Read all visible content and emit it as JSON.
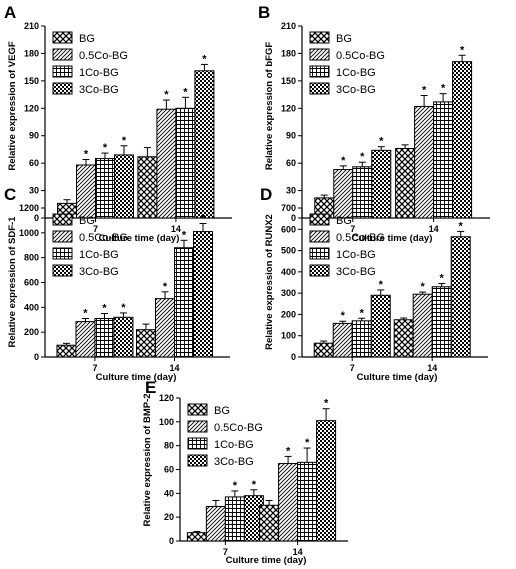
{
  "panels": [
    {
      "letter": "A",
      "chart_data": {
        "type": "bar",
        "categories": [
          "7",
          "14"
        ],
        "series": [
          {
            "name": "BG",
            "pattern": "diamond",
            "values": [
              16,
              67
            ],
            "errors": [
              4,
              10
            ],
            "sig": [
              false,
              false
            ]
          },
          {
            "name": "0.5Co-BG",
            "pattern": "diag",
            "values": [
              58,
              119
            ],
            "errors": [
              6,
              10
            ],
            "sig": [
              true,
              true
            ]
          },
          {
            "name": "1Co-BG",
            "pattern": "grid",
            "values": [
              65,
              120
            ],
            "errors": [
              6,
              12
            ],
            "sig": [
              true,
              true
            ]
          },
          {
            "name": "3Co-BG",
            "pattern": "check",
            "values": [
              69,
              161
            ],
            "errors": [
              10,
              7
            ],
            "sig": [
              true,
              true
            ]
          }
        ],
        "xlabel": "Culture time (day)",
        "ylabel": "Relative expression of VEGF",
        "ylim": [
          0,
          210
        ],
        "yticks": [
          0,
          30,
          60,
          90,
          120,
          150,
          180,
          210
        ],
        "legend": "top-left",
        "significance_mark": "*"
      }
    },
    {
      "letter": "B",
      "chart_data": {
        "type": "bar",
        "categories": [
          "7",
          "14"
        ],
        "series": [
          {
            "name": "BG",
            "pattern": "diamond",
            "values": [
              22,
              76
            ],
            "errors": [
              3,
              4
            ],
            "sig": [
              false,
              false
            ]
          },
          {
            "name": "0.5Co-BG",
            "pattern": "diag",
            "values": [
              53,
              122
            ],
            "errors": [
              4,
              12
            ],
            "sig": [
              true,
              true
            ]
          },
          {
            "name": "1Co-BG",
            "pattern": "grid",
            "values": [
              56,
              127
            ],
            "errors": [
              5,
              9
            ],
            "sig": [
              true,
              true
            ]
          },
          {
            "name": "3Co-BG",
            "pattern": "check",
            "values": [
              74,
              171
            ],
            "errors": [
              4,
              7
            ],
            "sig": [
              true,
              true
            ]
          }
        ],
        "xlabel": "Culture time (day)",
        "ylabel": "Relative expression of bFGF",
        "ylim": [
          0,
          210
        ],
        "yticks": [
          0,
          30,
          60,
          90,
          120,
          150,
          180,
          210
        ],
        "legend": "top-left",
        "significance_mark": "*"
      }
    },
    {
      "letter": "C",
      "chart_data": {
        "type": "bar",
        "categories": [
          "7",
          "14"
        ],
        "series": [
          {
            "name": "BG",
            "pattern": "diamond",
            "values": [
              95,
              220
            ],
            "errors": [
              15,
              45
            ],
            "sig": [
              false,
              false
            ]
          },
          {
            "name": "0.5Co-BG",
            "pattern": "diag",
            "values": [
              285,
              470
            ],
            "errors": [
              25,
              55
            ],
            "sig": [
              true,
              true
            ]
          },
          {
            "name": "1Co-BG",
            "pattern": "grid",
            "values": [
              310,
              880
            ],
            "errors": [
              40,
              60
            ],
            "sig": [
              true,
              true
            ]
          },
          {
            "name": "3Co-BG",
            "pattern": "check",
            "values": [
              320,
              1010
            ],
            "errors": [
              35,
              65
            ],
            "sig": [
              true,
              true
            ]
          }
        ],
        "xlabel": "Culture time (day)",
        "ylabel": "Relative expression of SDF-1",
        "ylim": [
          0,
          1200
        ],
        "yticks": [
          0,
          200,
          400,
          600,
          800,
          1000,
          1200
        ],
        "legend": "top-left",
        "significance_mark": "*"
      }
    },
    {
      "letter": "D",
      "chart_data": {
        "type": "bar",
        "categories": [
          "7",
          "14"
        ],
        "series": [
          {
            "name": "BG",
            "pattern": "diamond",
            "values": [
              65,
              175
            ],
            "errors": [
              10,
              8
            ],
            "sig": [
              false,
              false
            ]
          },
          {
            "name": "0.5Co-BG",
            "pattern": "diag",
            "values": [
              158,
              295
            ],
            "errors": [
              10,
              10
            ],
            "sig": [
              true,
              true
            ]
          },
          {
            "name": "1Co-BG",
            "pattern": "grid",
            "values": [
              170,
              330
            ],
            "errors": [
              12,
              15
            ],
            "sig": [
              true,
              true
            ]
          },
          {
            "name": "3Co-BG",
            "pattern": "check",
            "values": [
              290,
              565
            ],
            "errors": [
              25,
              25
            ],
            "sig": [
              true,
              true
            ]
          }
        ],
        "xlabel": "Culture time (day)",
        "ylabel": "Relative expression of RUNX2",
        "ylim": [
          0,
          700
        ],
        "yticks": [
          0,
          100,
          200,
          300,
          400,
          500,
          600,
          700
        ],
        "legend": "top-left",
        "significance_mark": "*"
      }
    },
    {
      "letter": "E",
      "chart_data": {
        "type": "bar",
        "categories": [
          "7",
          "14"
        ],
        "series": [
          {
            "name": "BG",
            "pattern": "diamond",
            "values": [
              7,
              30
            ],
            "errors": [
              1,
              4
            ],
            "sig": [
              false,
              false
            ]
          },
          {
            "name": "0.5Co-BG",
            "pattern": "diag",
            "values": [
              29,
              65
            ],
            "errors": [
              5,
              6
            ],
            "sig": [
              false,
              true
            ]
          },
          {
            "name": "1Co-BG",
            "pattern": "grid",
            "values": [
              37,
              66
            ],
            "errors": [
              5,
              12
            ],
            "sig": [
              true,
              true
            ]
          },
          {
            "name": "3Co-BG",
            "pattern": "check",
            "values": [
              38,
              101
            ],
            "errors": [
              5,
              10
            ],
            "sig": [
              true,
              true
            ]
          }
        ],
        "xlabel": "Culture time (day)",
        "ylabel": "Relative expression of BMP-2",
        "ylim": [
          0,
          120
        ],
        "yticks": [
          0,
          20,
          40,
          60,
          80,
          100,
          120
        ],
        "legend": "top-left",
        "significance_mark": "*"
      }
    }
  ]
}
